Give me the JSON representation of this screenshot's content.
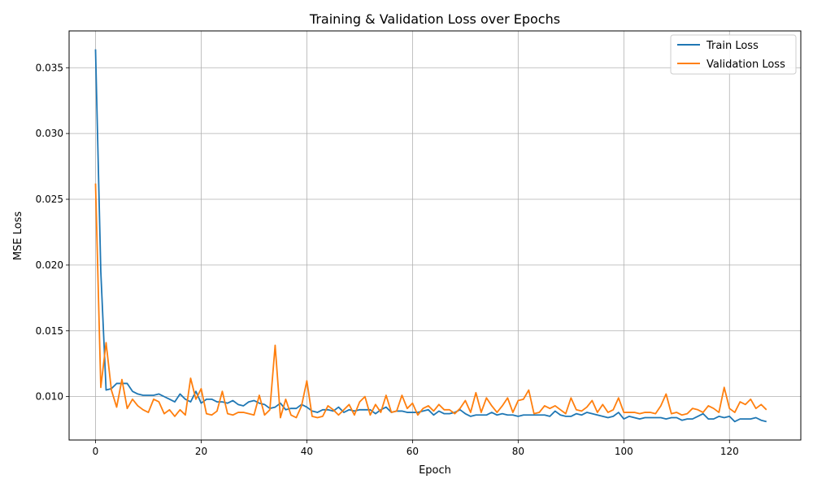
{
  "chart_data": {
    "type": "line",
    "title": "Training & Validation Loss over Epochs",
    "xlabel": "Epoch",
    "ylabel": "MSE Loss",
    "xlim": [
      -5,
      133.5
    ],
    "ylim": [
      0.0067,
      0.0378
    ],
    "xticks": [
      0,
      20,
      40,
      60,
      80,
      100,
      120
    ],
    "xtick_labels": [
      "0",
      "20",
      "40",
      "60",
      "80",
      "100",
      "120"
    ],
    "yticks": [
      0.01,
      0.015,
      0.02,
      0.025,
      0.03,
      0.035
    ],
    "ytick_labels": [
      "0.010",
      "0.015",
      "0.020",
      "0.025",
      "0.030",
      "0.035"
    ],
    "grid": true,
    "legend_position": "top-right",
    "series": [
      {
        "name": "Train Loss",
        "color": "#1f77b4",
        "x": [
          0,
          1,
          2,
          3,
          4,
          5,
          6,
          7,
          8,
          9,
          10,
          11,
          12,
          13,
          14,
          15,
          16,
          17,
          18,
          19,
          20,
          21,
          22,
          23,
          24,
          25,
          26,
          27,
          28,
          29,
          30,
          31,
          32,
          33,
          34,
          35,
          36,
          37,
          38,
          39,
          40,
          41,
          42,
          43,
          44,
          45,
          46,
          47,
          48,
          49,
          50,
          51,
          52,
          53,
          54,
          55,
          56,
          57,
          58,
          59,
          60,
          61,
          62,
          63,
          64,
          65,
          66,
          67,
          68,
          69,
          70,
          71,
          72,
          73,
          74,
          75,
          76,
          77,
          78,
          79,
          80,
          81,
          82,
          83,
          84,
          85,
          86,
          87,
          88,
          89,
          90,
          91,
          92,
          93,
          94,
          95,
          96,
          97,
          98,
          99,
          100,
          101,
          102,
          103,
          104,
          105,
          106,
          107,
          108,
          109,
          110,
          111,
          112,
          113,
          114,
          115,
          116,
          117,
          118,
          119,
          120,
          121,
          122,
          123,
          124,
          125,
          126,
          127
        ],
        "values": [
          0.0364,
          0.0195,
          0.0105,
          0.0106,
          0.011,
          0.011,
          0.011,
          0.0104,
          0.0102,
          0.0101,
          0.0101,
          0.0101,
          0.0102,
          0.01,
          0.0098,
          0.0096,
          0.0102,
          0.0098,
          0.0096,
          0.0104,
          0.0095,
          0.0098,
          0.0098,
          0.0096,
          0.0096,
          0.0095,
          0.0097,
          0.0094,
          0.0093,
          0.0096,
          0.0097,
          0.0095,
          0.0094,
          0.0091,
          0.0092,
          0.0095,
          0.009,
          0.0091,
          0.0091,
          0.0094,
          0.0092,
          0.0089,
          0.0088,
          0.009,
          0.009,
          0.0089,
          0.0092,
          0.0088,
          0.009,
          0.0089,
          0.009,
          0.009,
          0.009,
          0.0087,
          0.009,
          0.0092,
          0.0088,
          0.0089,
          0.0089,
          0.0088,
          0.0088,
          0.0088,
          0.0089,
          0.009,
          0.0086,
          0.0089,
          0.0087,
          0.0087,
          0.0088,
          0.009,
          0.0087,
          0.0085,
          0.0086,
          0.0086,
          0.0086,
          0.0088,
          0.0086,
          0.0087,
          0.0086,
          0.0086,
          0.0085,
          0.0086,
          0.0086,
          0.0086,
          0.0086,
          0.0086,
          0.0085,
          0.0089,
          0.0086,
          0.0085,
          0.0085,
          0.0087,
          0.0086,
          0.0088,
          0.0087,
          0.0086,
          0.0085,
          0.0084,
          0.0085,
          0.0088,
          0.0083,
          0.0085,
          0.0084,
          0.0083,
          0.0084,
          0.0084,
          0.0084,
          0.0084,
          0.0083,
          0.0084,
          0.0084,
          0.0082,
          0.0083,
          0.0083,
          0.0085,
          0.0087,
          0.0083,
          0.0083,
          0.0085,
          0.0084,
          0.0085,
          0.0081,
          0.0083,
          0.0083,
          0.0083,
          0.0084,
          0.0082,
          0.0081
        ]
      },
      {
        "name": "Validation Loss",
        "color": "#ff7f0e",
        "x": [
          0,
          1,
          2,
          3,
          4,
          5,
          6,
          7,
          8,
          9,
          10,
          11,
          12,
          13,
          14,
          15,
          16,
          17,
          18,
          19,
          20,
          21,
          22,
          23,
          24,
          25,
          26,
          27,
          28,
          29,
          30,
          31,
          32,
          33,
          34,
          35,
          36,
          37,
          38,
          39,
          40,
          41,
          42,
          43,
          44,
          45,
          46,
          47,
          48,
          49,
          50,
          51,
          52,
          53,
          54,
          55,
          56,
          57,
          58,
          59,
          60,
          61,
          62,
          63,
          64,
          65,
          66,
          67,
          68,
          69,
          70,
          71,
          72,
          73,
          74,
          75,
          76,
          77,
          78,
          79,
          80,
          81,
          82,
          83,
          84,
          85,
          86,
          87,
          88,
          89,
          90,
          91,
          92,
          93,
          94,
          95,
          96,
          97,
          98,
          99,
          100,
          101,
          102,
          103,
          104,
          105,
          106,
          107,
          108,
          109,
          110,
          111,
          112,
          113,
          114,
          115,
          116,
          117,
          118,
          119,
          120,
          121,
          122,
          123,
          124,
          125,
          126,
          127
        ],
        "values": [
          0.0262,
          0.0107,
          0.0141,
          0.0105,
          0.0092,
          0.0113,
          0.0091,
          0.0098,
          0.0093,
          0.009,
          0.0088,
          0.0098,
          0.0096,
          0.0087,
          0.009,
          0.0085,
          0.009,
          0.0086,
          0.0114,
          0.0098,
          0.0106,
          0.0087,
          0.0086,
          0.0089,
          0.0104,
          0.0087,
          0.0086,
          0.0088,
          0.0088,
          0.0087,
          0.0086,
          0.0101,
          0.0086,
          0.009,
          0.0139,
          0.0084,
          0.0098,
          0.0086,
          0.0084,
          0.0093,
          0.0112,
          0.0085,
          0.0084,
          0.0085,
          0.0093,
          0.009,
          0.0086,
          0.009,
          0.0094,
          0.0086,
          0.0096,
          0.01,
          0.0086,
          0.0094,
          0.0088,
          0.0101,
          0.0088,
          0.0089,
          0.0101,
          0.0091,
          0.0095,
          0.0086,
          0.0091,
          0.0093,
          0.0089,
          0.0094,
          0.009,
          0.009,
          0.0087,
          0.0091,
          0.0097,
          0.0088,
          0.0103,
          0.0088,
          0.0099,
          0.0093,
          0.0088,
          0.0093,
          0.0099,
          0.0088,
          0.0097,
          0.0098,
          0.0105,
          0.0087,
          0.0088,
          0.0093,
          0.0091,
          0.0093,
          0.009,
          0.0087,
          0.0099,
          0.009,
          0.0089,
          0.0092,
          0.0097,
          0.0088,
          0.0094,
          0.0088,
          0.009,
          0.0099,
          0.0088,
          0.0088,
          0.0088,
          0.0087,
          0.0088,
          0.0088,
          0.0087,
          0.0093,
          0.0102,
          0.0087,
          0.0088,
          0.0086,
          0.0087,
          0.0091,
          0.009,
          0.0088,
          0.0093,
          0.0091,
          0.0088,
          0.0107,
          0.0091,
          0.0088,
          0.0096,
          0.0094,
          0.0098,
          0.0091,
          0.0094,
          0.009
        ]
      }
    ]
  }
}
